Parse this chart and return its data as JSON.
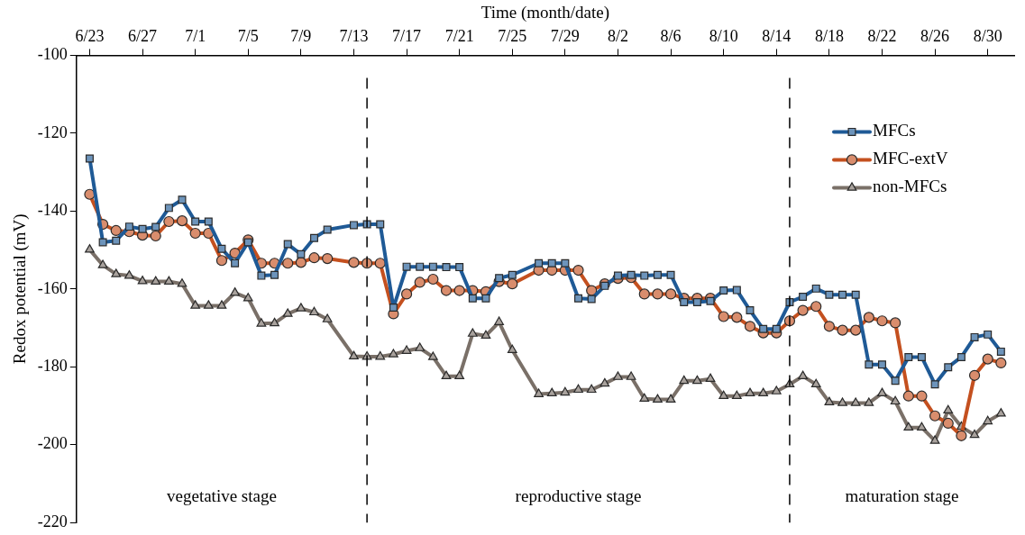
{
  "chart_data": {
    "type": "line",
    "xlabel": "Time (month/date)",
    "ylabel": "Redox potential (mV)",
    "x": [
      "--06-23",
      "--06-24",
      "--06-25",
      "--06-26",
      "--06-27",
      "--06-28",
      "--06-29",
      "--06-30",
      "--07-01",
      "--07-02",
      "--07-03",
      "--07-04",
      "--07-05",
      "--07-06",
      "--07-07",
      "--07-08",
      "--07-09",
      "--07-10",
      "--07-11",
      "--07-13",
      "--07-14",
      "--07-15",
      "--07-16",
      "--07-17",
      "--07-18",
      "--07-19",
      "--07-20",
      "--07-21",
      "--07-22",
      "--07-23",
      "--07-24",
      "--07-25",
      "--07-27",
      "--07-28",
      "--07-29",
      "--07-30",
      "--07-31",
      "--08-01",
      "--08-02",
      "--08-03",
      "--08-04",
      "--08-05",
      "--08-06",
      "--08-07",
      "--08-08",
      "--08-09",
      "--08-10",
      "--08-11",
      "--08-12",
      "--08-13",
      "--08-14",
      "--08-15",
      "--08-16",
      "--08-17",
      "--08-18",
      "--08-19",
      "--08-20",
      "--08-21",
      "--08-22",
      "--08-23",
      "--08-24",
      "--08-25",
      "--08-26",
      "--08-27",
      "--08-28",
      "--08-29",
      "--08-30",
      "--08-31"
    ],
    "series": [
      {
        "name": "MFCs",
        "color": "#1f5a96",
        "marker": "square",
        "values": [
          -126.5,
          -148,
          -147.6,
          -144,
          -144.6,
          -144.1,
          -139.2,
          -137.1,
          -142.7,
          -142.7,
          -149.7,
          -153.4,
          -148,
          -156.6,
          -156.4,
          -148.5,
          -151.1,
          -146.9,
          -144.8,
          -143.6,
          -143.4,
          -143.4,
          -164.8,
          -154.3,
          -154.3,
          -154.3,
          -154.4,
          -154.4,
          -162.4,
          -162.4,
          -157.2,
          -156.4,
          -153.4,
          -153.4,
          -153.4,
          -162.4,
          -162.6,
          -159.2,
          -156.6,
          -156.4,
          -156.6,
          -156.4,
          -156.4,
          -163.4,
          -163.4,
          -163.1,
          -160.4,
          -160.3,
          -165.5,
          -170.3,
          -170.3,
          -163.4,
          -162,
          -159.9,
          -161.5,
          -161.5,
          -161.5,
          -179.4,
          -179.4,
          -183.6,
          -177.5,
          -177.5,
          -184.5,
          -180.1,
          -177.5,
          -172.4,
          -171.7,
          -176.1
        ]
      },
      {
        "name": "MFC-extV",
        "color": "#c4501f",
        "marker": "circle",
        "values": [
          -135.7,
          -143.4,
          -145,
          -145.3,
          -146.2,
          -146.4,
          -142.7,
          -142.5,
          -145.7,
          -145.7,
          -152.7,
          -150.8,
          -147.4,
          -153.4,
          -153.4,
          -153.4,
          -153.2,
          -152,
          -152.2,
          -153.2,
          -153.4,
          -153.4,
          -166.4,
          -161.3,
          -158.3,
          -157.5,
          -160.4,
          -160.4,
          -160.4,
          -160.7,
          -158.1,
          -158.7,
          -155.2,
          -155.2,
          -155.2,
          -155.2,
          -160.4,
          -158.7,
          -157.3,
          -157.1,
          -161.3,
          -161.3,
          -161.3,
          -162.4,
          -162.4,
          -162.4,
          -167.1,
          -167.3,
          -169.6,
          -171.3,
          -171.3,
          -168.2,
          -165.5,
          -164.5,
          -169.6,
          -170.6,
          -170.6,
          -167.3,
          -168.2,
          -168.7,
          -187.5,
          -187.5,
          -192.6,
          -194.5,
          -197.7,
          -182.2,
          -178,
          -179
        ]
      },
      {
        "name": "non-MFCs",
        "color": "#7a7068",
        "marker": "triangle",
        "values": [
          -149.9,
          -153.9,
          -156.2,
          -156.6,
          -158,
          -158.1,
          -158.1,
          -158.7,
          -164.3,
          -164.3,
          -164.3,
          -161,
          -162.4,
          -168.9,
          -168.8,
          -166.4,
          -165,
          -166,
          -167.8,
          -177.3,
          -177.4,
          -177.4,
          -176.8,
          -175.9,
          -175.2,
          -177.5,
          -182.4,
          -182.4,
          -171.5,
          -172,
          -168.5,
          -175.7,
          -187,
          -186.8,
          -186.6,
          -185.9,
          -185.9,
          -184.3,
          -182.6,
          -182.6,
          -188.2,
          -188.4,
          -188.4,
          -183.6,
          -183.6,
          -183.1,
          -187.5,
          -187.5,
          -186.8,
          -186.8,
          -186.3,
          -184.5,
          -182.4,
          -184.5,
          -189.1,
          -189.3,
          -189.3,
          -189.3,
          -186.8,
          -188.9,
          -195.6,
          -195.6,
          -199,
          -191.2,
          -195.4,
          -197.5,
          -194,
          -192
        ]
      }
    ],
    "xlim": [
      "--06-22",
      "--09-01"
    ],
    "xticks": [
      {
        "value": "--06-23",
        "label": "6/23"
      },
      {
        "value": "--06-27",
        "label": "6/27"
      },
      {
        "value": "--07-01",
        "label": "7/1"
      },
      {
        "value": "--07-05",
        "label": "7/5"
      },
      {
        "value": "--07-09",
        "label": "7/9"
      },
      {
        "value": "--07-13",
        "label": "7/13"
      },
      {
        "value": "--07-17",
        "label": "7/17"
      },
      {
        "value": "--07-21",
        "label": "7/21"
      },
      {
        "value": "--07-25",
        "label": "7/25"
      },
      {
        "value": "--07-29",
        "label": "7/29"
      },
      {
        "value": "--08-02",
        "label": "8/2"
      },
      {
        "value": "--08-06",
        "label": "8/6"
      },
      {
        "value": "--08-10",
        "label": "8/10"
      },
      {
        "value": "--08-14",
        "label": "8/14"
      },
      {
        "value": "--08-18",
        "label": "8/18"
      },
      {
        "value": "--08-22",
        "label": "8/22"
      },
      {
        "value": "--08-26",
        "label": "8/26"
      },
      {
        "value": "--08-30",
        "label": "8/30"
      }
    ],
    "ylim": [
      -220,
      -100
    ],
    "yticks": [
      -220,
      -200,
      -180,
      -160,
      -140,
      -120,
      -100
    ],
    "ref_lines": [
      {
        "axis": "x",
        "value": "--07-14",
        "line_style": "dashed",
        "color": "#000000"
      },
      {
        "axis": "x",
        "value": "--08-15",
        "line_style": "dashed",
        "color": "#000000"
      }
    ],
    "annotations": [
      "vegetative stage",
      "reproductive stage",
      "maturation stage"
    ],
    "grid": false,
    "legend": "top right",
    "line_style": "solid"
  }
}
